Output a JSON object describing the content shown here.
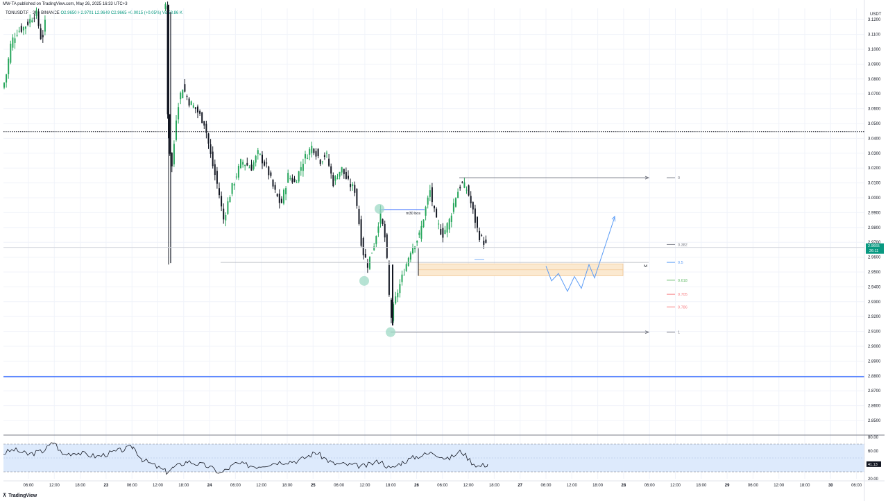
{
  "header": {
    "published": "MW-TA published on TradingView.com, May 26, 2025 16:33 UTC+3",
    "symbol": "TONUSDT.P · 30 · BINANCE",
    "ohlc": "O2.9650 H2.9701 L2.9649 C2.9665 +0.0015 (+0.05%) Vol58.86 K"
  },
  "chart_data": {
    "type": "candlestick",
    "currency": "USDT",
    "ylim": [
      2.85,
      3.13
    ],
    "price_ticks": [
      "3.1200",
      "3.1100",
      "3.1000",
      "3.0900",
      "3.0800",
      "3.0700",
      "3.0600",
      "3.0500",
      "3.0400",
      "3.0300",
      "3.0200",
      "3.0100",
      "3.0000",
      "2.9900",
      "2.9800",
      "2.9700",
      "2.9600",
      "2.9500",
      "2.9400",
      "2.9300",
      "2.9200",
      "2.9100",
      "2.9000",
      "2.8900",
      "2.8800",
      "2.8700",
      "2.8600",
      "2.8500"
    ],
    "time_ticks": [
      "06:00",
      "12:00",
      "18:00",
      "23",
      "06:00",
      "12:00",
      "18:00",
      "24",
      "06:00",
      "12:00",
      "18:00",
      "25",
      "06:00",
      "12:00",
      "18:00",
      "26",
      "06:00",
      "12:00",
      "18:00",
      "27",
      "06:00",
      "12:00",
      "18:00",
      "28",
      "06:00",
      "12:00",
      "18:00",
      "29",
      "06:00",
      "12:00",
      "18:00",
      "30",
      "06:00"
    ],
    "last_price": "2.9665",
    "countdown": "26:11",
    "horizontal_levels": {
      "dotted": 3.0445,
      "blue": 2.8795,
      "last": 2.9665
    },
    "fib_levels": [
      {
        "label": "0",
        "value": 3.0135,
        "color": "#787b86"
      },
      {
        "label": "0.382",
        "value": 2.9685,
        "color": "#787b86"
      },
      {
        "label": "0.5",
        "value": 2.9565,
        "color": "#5b9cf6"
      },
      {
        "label": "0.618",
        "value": 2.9445,
        "color": "#66bb6a"
      },
      {
        "label": "0.705",
        "value": 2.935,
        "color": "#f77c80"
      },
      {
        "label": "0.786",
        "value": 2.9265,
        "color": "#f77c80"
      },
      {
        "label": "1",
        "value": 2.9095,
        "color": "#787b86"
      }
    ],
    "annotations": {
      "bos": "m30 bos",
      "zone": "lvl"
    },
    "zone": {
      "top": 2.9555,
      "bottom": 2.9475
    },
    "rsi": {
      "ticks": [
        "80.00",
        "60.00",
        "40.00",
        "20.00"
      ],
      "band": [
        30,
        70
      ],
      "current": "41.13"
    }
  },
  "footer": {
    "brand": "TradingView"
  }
}
